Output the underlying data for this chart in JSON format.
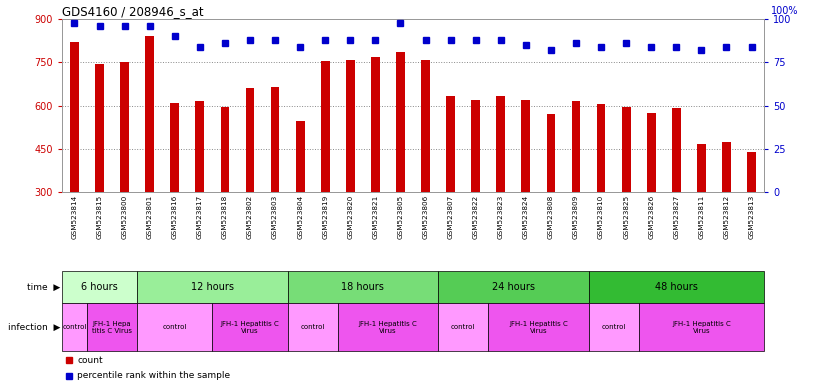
{
  "title": "GDS4160 / 208946_s_at",
  "samples": [
    "GSM523814",
    "GSM523815",
    "GSM523800",
    "GSM523801",
    "GSM523816",
    "GSM523817",
    "GSM523818",
    "GSM523802",
    "GSM523803",
    "GSM523804",
    "GSM523819",
    "GSM523820",
    "GSM523821",
    "GSM523805",
    "GSM523806",
    "GSM523807",
    "GSM523822",
    "GSM523823",
    "GSM523824",
    "GSM523808",
    "GSM523809",
    "GSM523810",
    "GSM523825",
    "GSM523826",
    "GSM523827",
    "GSM523811",
    "GSM523812",
    "GSM523813"
  ],
  "counts": [
    820,
    745,
    750,
    840,
    610,
    615,
    595,
    660,
    665,
    545,
    755,
    760,
    770,
    785,
    760,
    635,
    620,
    635,
    620,
    570,
    615,
    605,
    595,
    575,
    590,
    465,
    475,
    440
  ],
  "percentile_ranks": [
    98,
    96,
    96,
    96,
    90,
    84,
    86,
    88,
    88,
    84,
    88,
    88,
    88,
    98,
    88,
    88,
    88,
    88,
    85,
    82,
    86,
    84,
    86,
    84,
    84,
    82,
    84,
    84
  ],
  "bar_color": "#cc0000",
  "dot_color": "#0000cc",
  "ylim_left": [
    300,
    900
  ],
  "ylim_right": [
    0,
    100
  ],
  "yticks_left": [
    300,
    450,
    600,
    750,
    900
  ],
  "yticks_right": [
    0,
    25,
    50,
    75,
    100
  ],
  "time_groups": [
    {
      "label": "6 hours",
      "start": 0,
      "end": 3,
      "color": "#ccffcc"
    },
    {
      "label": "12 hours",
      "start": 3,
      "end": 9,
      "color": "#99ee99"
    },
    {
      "label": "18 hours",
      "start": 9,
      "end": 15,
      "color": "#77dd77"
    },
    {
      "label": "24 hours",
      "start": 15,
      "end": 21,
      "color": "#55cc55"
    },
    {
      "label": "48 hours",
      "start": 21,
      "end": 28,
      "color": "#33bb33"
    }
  ],
  "infection_groups": [
    {
      "label": "control",
      "start": 0,
      "end": 1,
      "color": "#ff99ff"
    },
    {
      "label": "JFH-1 Hepa\ntitis C Virus",
      "start": 1,
      "end": 3,
      "color": "#ee55ee"
    },
    {
      "label": "control",
      "start": 3,
      "end": 6,
      "color": "#ff99ff"
    },
    {
      "label": "JFH-1 Hepatitis C\nVirus",
      "start": 6,
      "end": 9,
      "color": "#ee55ee"
    },
    {
      "label": "control",
      "start": 9,
      "end": 11,
      "color": "#ff99ff"
    },
    {
      "label": "JFH-1 Hepatitis C\nVirus",
      "start": 11,
      "end": 15,
      "color": "#ee55ee"
    },
    {
      "label": "control",
      "start": 15,
      "end": 17,
      "color": "#ff99ff"
    },
    {
      "label": "JFH-1 Hepatitis C\nVirus",
      "start": 17,
      "end": 21,
      "color": "#ee55ee"
    },
    {
      "label": "control",
      "start": 21,
      "end": 23,
      "color": "#ff99ff"
    },
    {
      "label": "JFH-1 Hepatitis C\nVirus",
      "start": 23,
      "end": 28,
      "color": "#ee55ee"
    }
  ],
  "bg_color": "#ffffff",
  "bar_width": 0.35,
  "tick_bg_color": "#dddddd",
  "grid_color": "#888888",
  "left_axis_color": "#cc0000",
  "right_axis_color": "#0000cc",
  "spine_color": "#999999"
}
